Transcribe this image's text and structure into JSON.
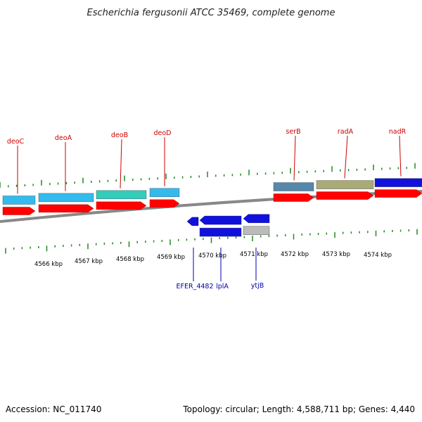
{
  "title": "Escherichia fergusonii ATCC 35469, complete genome",
  "accession": "Accession: NC_011740",
  "topology": "Topology: circular; Length: 4,588,711 bp; Genes: 4,440",
  "colors": {
    "forward_gene": "#ff0000",
    "backbone": "#888888",
    "tick": "#228822",
    "top_label": "#cc0000",
    "bottom_label": "#0000aa"
  },
  "kbp_labels": [
    "4566 kbp",
    "4567 kbp",
    "4568 kbp",
    "4569 kbp",
    "4570 kbp",
    "4571 kbp",
    "4572 kbp",
    "4573 kbp",
    "4574 kbp"
  ],
  "forward_features": [
    {
      "name": "deoC",
      "cog_color": "#33bbee"
    },
    {
      "name": "deoA",
      "cog_color": "#33bbee"
    },
    {
      "name": "deoB",
      "cog_color": "#33ccbb"
    },
    {
      "name": "deoD",
      "cog_color": "#33bbee"
    },
    {
      "name": "serB",
      "cog_color": "#5588aa"
    },
    {
      "name": "radA",
      "cog_color": "#aaaa77"
    },
    {
      "name": "nadR",
      "cog_color": "#1111dd"
    }
  ],
  "reverse_features": [
    {
      "name": "EFER_4482",
      "cog_color": "#1111dd"
    },
    {
      "name": "lplA",
      "cog_color": "#1111dd"
    },
    {
      "name": "ytjB",
      "cog_color": "#bbbbbb"
    }
  ]
}
